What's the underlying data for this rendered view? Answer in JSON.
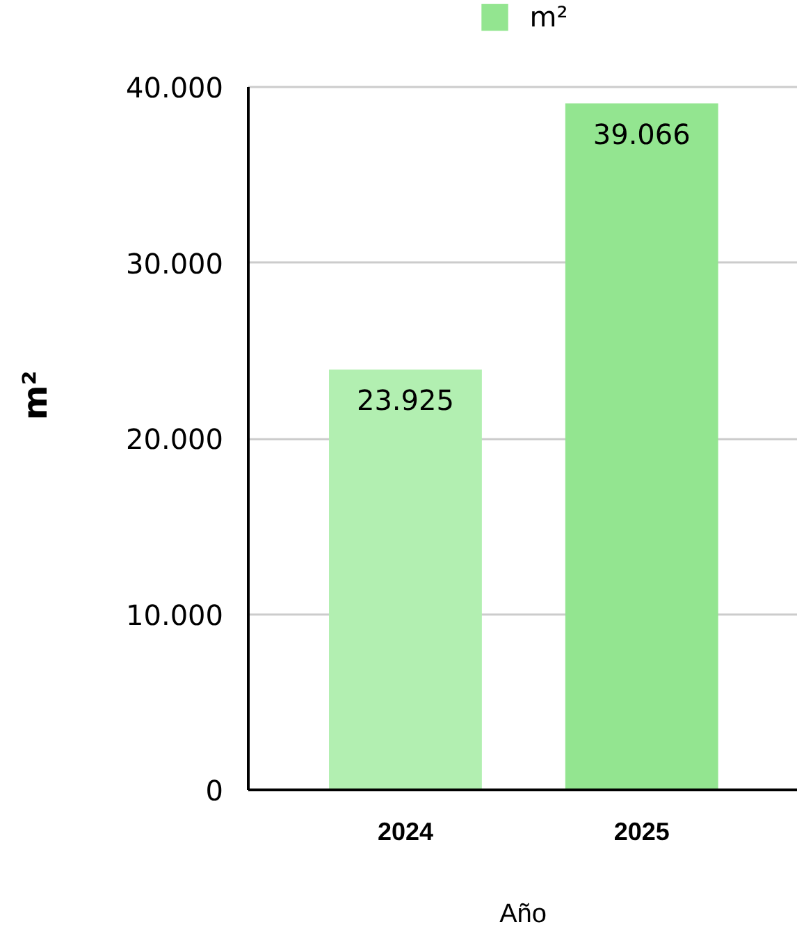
{
  "chart_data": {
    "type": "bar",
    "xlabel": "Año",
    "ylabel": "m²",
    "categories": [
      "2024",
      "2025"
    ],
    "series": [
      {
        "name": "m²",
        "color": "#93e590",
        "colors": [
          "#b2efb1",
          "#93e590"
        ],
        "values": [
          23925,
          39066
        ],
        "value_labels": [
          "23.925",
          "39.066"
        ]
      }
    ],
    "ylim": [
      0,
      40000
    ],
    "yticks": [
      0,
      {
        "value": 10000,
        "label": "10.000"
      },
      {
        "value": 20000,
        "label": "20.000"
      },
      {
        "value": 30000,
        "label": "30.000"
      },
      {
        "value": 40000,
        "label": "40.000"
      }
    ],
    "grid": "y",
    "legend": "top"
  }
}
